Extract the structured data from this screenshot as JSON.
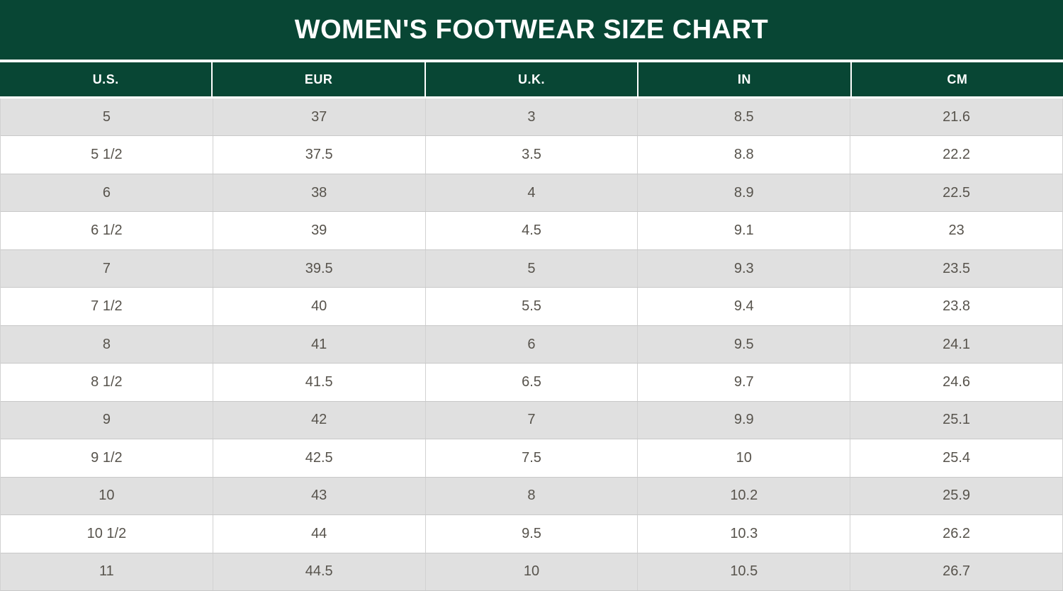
{
  "title": "WOMEN'S FOOTWEAR SIZE CHART",
  "colors": {
    "header_green": "#084634",
    "stripe_gray": "#e0e0e0",
    "row_white": "#ffffff",
    "border_gray": "#c8c8c8",
    "vertical_line_gray": "#d2d2d2",
    "cell_text": "#57534c",
    "header_text": "#ffffff"
  },
  "chart_data": {
    "type": "table",
    "title": "WOMEN'S FOOTWEAR SIZE CHART",
    "columns": [
      "U.S.",
      "EUR",
      "U.K.",
      "IN",
      "CM"
    ],
    "rows": [
      [
        "5",
        "37",
        "3",
        "8.5",
        "21.6"
      ],
      [
        "5 1/2",
        "37.5",
        "3.5",
        "8.8",
        "22.2"
      ],
      [
        "6",
        "38",
        "4",
        "8.9",
        "22.5"
      ],
      [
        "6 1/2",
        "39",
        "4.5",
        "9.1",
        "23"
      ],
      [
        "7",
        "39.5",
        "5",
        "9.3",
        "23.5"
      ],
      [
        "7 1/2",
        "40",
        "5.5",
        "9.4",
        "23.8"
      ],
      [
        "8",
        "41",
        "6",
        "9.5",
        "24.1"
      ],
      [
        "8 1/2",
        "41.5",
        "6.5",
        "9.7",
        "24.6"
      ],
      [
        "9",
        "42",
        "7",
        "9.9",
        "25.1"
      ],
      [
        "9 1/2",
        "42.5",
        "7.5",
        "10",
        "25.4"
      ],
      [
        "10",
        "43",
        "8",
        "10.2",
        "25.9"
      ],
      [
        "10 1/2",
        "44",
        "9.5",
        "10.3",
        "26.2"
      ],
      [
        "11",
        "44.5",
        "10",
        "10.5",
        "26.7"
      ]
    ],
    "layout": {
      "stripe_pattern": "first-row-gray-alternating",
      "grid": "on",
      "legend": "none"
    }
  }
}
